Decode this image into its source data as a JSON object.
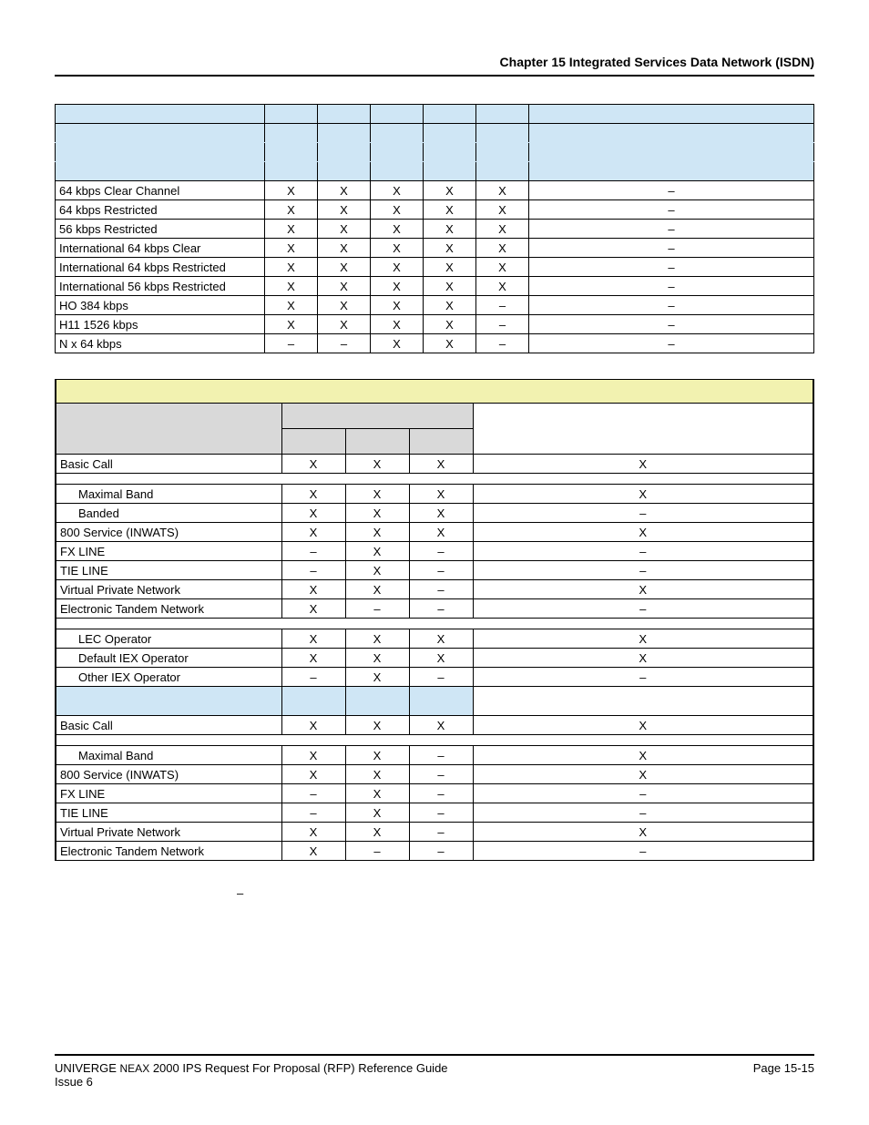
{
  "colors": {
    "header_blue": "#cfe6f5",
    "section_yellow": "#f2f2b0",
    "row_grey": "#d9d9d9",
    "border": "#000000",
    "text": "#000000",
    "bg": "#ffffff"
  },
  "header": {
    "chapter": "Chapter 15   Integrated Services Data Network (ISDN)"
  },
  "table1": {
    "type": "table",
    "col_labels_blank": true,
    "rows": [
      {
        "label": "64 kbps Clear Channel",
        "cells": [
          "X",
          "X",
          "X",
          "X",
          "X",
          "–"
        ]
      },
      {
        "label": "64 kbps Restricted",
        "cells": [
          "X",
          "X",
          "X",
          "X",
          "X",
          "–"
        ]
      },
      {
        "label": "56 kbps Restricted",
        "cells": [
          "X",
          "X",
          "X",
          "X",
          "X",
          "–"
        ]
      },
      {
        "label": "International 64 kbps Clear",
        "cells": [
          "X",
          "X",
          "X",
          "X",
          "X",
          "–"
        ]
      },
      {
        "label": "International 64 kbps Restricted",
        "cells": [
          "X",
          "X",
          "X",
          "X",
          "X",
          "–"
        ]
      },
      {
        "label": "International 56 kbps Restricted",
        "cells": [
          "X",
          "X",
          "X",
          "X",
          "X",
          "–"
        ]
      },
      {
        "label": "HO 384 kbps",
        "cells": [
          "X",
          "X",
          "X",
          "X",
          "–",
          "–"
        ]
      },
      {
        "label": "H11 1526 kbps",
        "cells": [
          "X",
          "X",
          "X",
          "X",
          "–",
          "–"
        ]
      },
      {
        "label": "N x 64 kbps",
        "cells": [
          "–",
          "–",
          "X",
          "X",
          "–",
          "–"
        ]
      }
    ]
  },
  "table2": {
    "type": "table",
    "rows": [
      {
        "kind": "yellow",
        "span": 5
      },
      {
        "kind": "grey2",
        "cells": [
          "",
          "",
          "",
          "",
          ""
        ]
      },
      {
        "kind": "grey3",
        "cells": [
          "",
          "",
          "",
          "",
          ""
        ]
      },
      {
        "kind": "data",
        "label": "Basic Call",
        "cells": [
          "X",
          "X",
          "X",
          "X"
        ]
      },
      {
        "kind": "spacer"
      },
      {
        "kind": "data",
        "label": "Maximal Band",
        "indent": 1,
        "cells": [
          "X",
          "X",
          "X",
          "X"
        ]
      },
      {
        "kind": "data",
        "label": "Banded",
        "indent": 1,
        "cells": [
          "X",
          "X",
          "X",
          "–"
        ]
      },
      {
        "kind": "data",
        "label": "800 Service (INWATS)",
        "cells": [
          "X",
          "X",
          "X",
          "X"
        ]
      },
      {
        "kind": "data",
        "label": "FX LINE",
        "cells": [
          "–",
          "X",
          "–",
          "–"
        ]
      },
      {
        "kind": "data",
        "label": "TIE LINE",
        "cells": [
          "–",
          "X",
          "–",
          "–"
        ]
      },
      {
        "kind": "data",
        "label": "Virtual Private Network",
        "cells": [
          "X",
          "X",
          "–",
          "X"
        ]
      },
      {
        "kind": "data",
        "label": "Electronic Tandem Network",
        "cells": [
          "X",
          "–",
          "–",
          "–"
        ]
      },
      {
        "kind": "spacer"
      },
      {
        "kind": "data",
        "label": "LEC Operator",
        "indent": 1,
        "cells": [
          "X",
          "X",
          "X",
          "X"
        ]
      },
      {
        "kind": "data",
        "label": "Default IEX Operator",
        "indent": 1,
        "cells": [
          "X",
          "X",
          "X",
          "X"
        ]
      },
      {
        "kind": "data",
        "label": "Other IEX Operator",
        "indent": 1,
        "cells": [
          "–",
          "X",
          "–",
          "–"
        ]
      },
      {
        "kind": "blueband",
        "cells": [
          "",
          "",
          "",
          "",
          ""
        ]
      },
      {
        "kind": "data",
        "label": "Basic Call",
        "cells": [
          "X",
          "X",
          "X",
          "X"
        ]
      },
      {
        "kind": "spacer"
      },
      {
        "kind": "data",
        "label": "Maximal Band",
        "indent": 1,
        "cells": [
          "X",
          "X",
          "–",
          "X"
        ]
      },
      {
        "kind": "data",
        "label": "800 Service (INWATS)",
        "cells": [
          "X",
          "X",
          "–",
          "X"
        ]
      },
      {
        "kind": "data",
        "label": "FX LINE",
        "cells": [
          "–",
          "X",
          "–",
          "–"
        ]
      },
      {
        "kind": "data",
        "label": "TIE LINE",
        "cells": [
          "–",
          "X",
          "–",
          "–"
        ]
      },
      {
        "kind": "data",
        "label": "Virtual Private Network",
        "cells": [
          "X",
          "X",
          "–",
          "X"
        ]
      },
      {
        "kind": "data",
        "label": "Electronic Tandem Network",
        "cells": [
          "X",
          "–",
          "–",
          "–"
        ]
      }
    ]
  },
  "lone_dash": "–",
  "footer": {
    "left1_a": "UNIVERGE ",
    "left1_b": "NEAX",
    "left1_c": " 2000 IPS Request For Proposal (RFP) Reference Guide",
    "left2": "Issue 6",
    "right": "Page 15-15"
  }
}
